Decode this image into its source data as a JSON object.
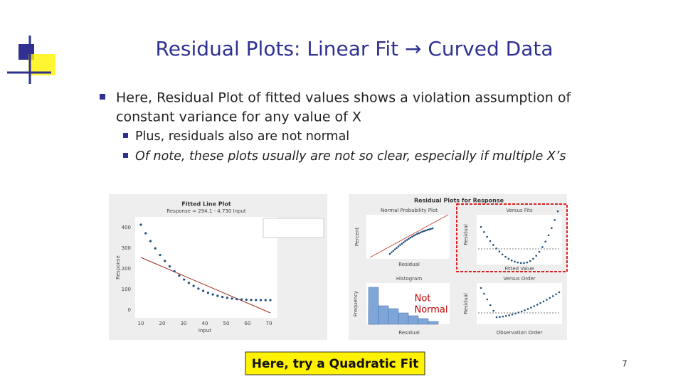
{
  "header": {
    "title": "Residual Plots: Linear Fit → Curved Data"
  },
  "bullets": [
    {
      "text": "Here, Residual Plot of fitted values shows a violation assumption of",
      "text2": "constant variance for any value of X"
    },
    {
      "text": "Plus, residuals also are not normal"
    },
    {
      "text": "Of note, these plots usually are not so clear, especially if multiple X’s"
    }
  ],
  "fitted_plot": {
    "title": "Fitted Line Plot",
    "equation": "Response = 294.1 - 4.730 Input",
    "x_label": "Input",
    "y_label": "Response",
    "xticks": [
      "10",
      "20",
      "30",
      "40",
      "50",
      "60",
      "70"
    ],
    "yticks": [
      "400",
      "300",
      "200",
      "100",
      "0"
    ]
  },
  "residual_plots": {
    "title": "Residual Plots for Response",
    "panels": [
      "Normal Probability Plot",
      "Versus Fits",
      "Histogram",
      "Versus Order"
    ],
    "labels": [
      "Residual",
      "Percent",
      "Fitted Value",
      "Frequency",
      "Observation Order"
    ]
  },
  "annotation": {
    "line1": "Not",
    "line2": "Normal"
  },
  "callout": "Here, try a Quadratic Fit",
  "page_number": "7"
}
